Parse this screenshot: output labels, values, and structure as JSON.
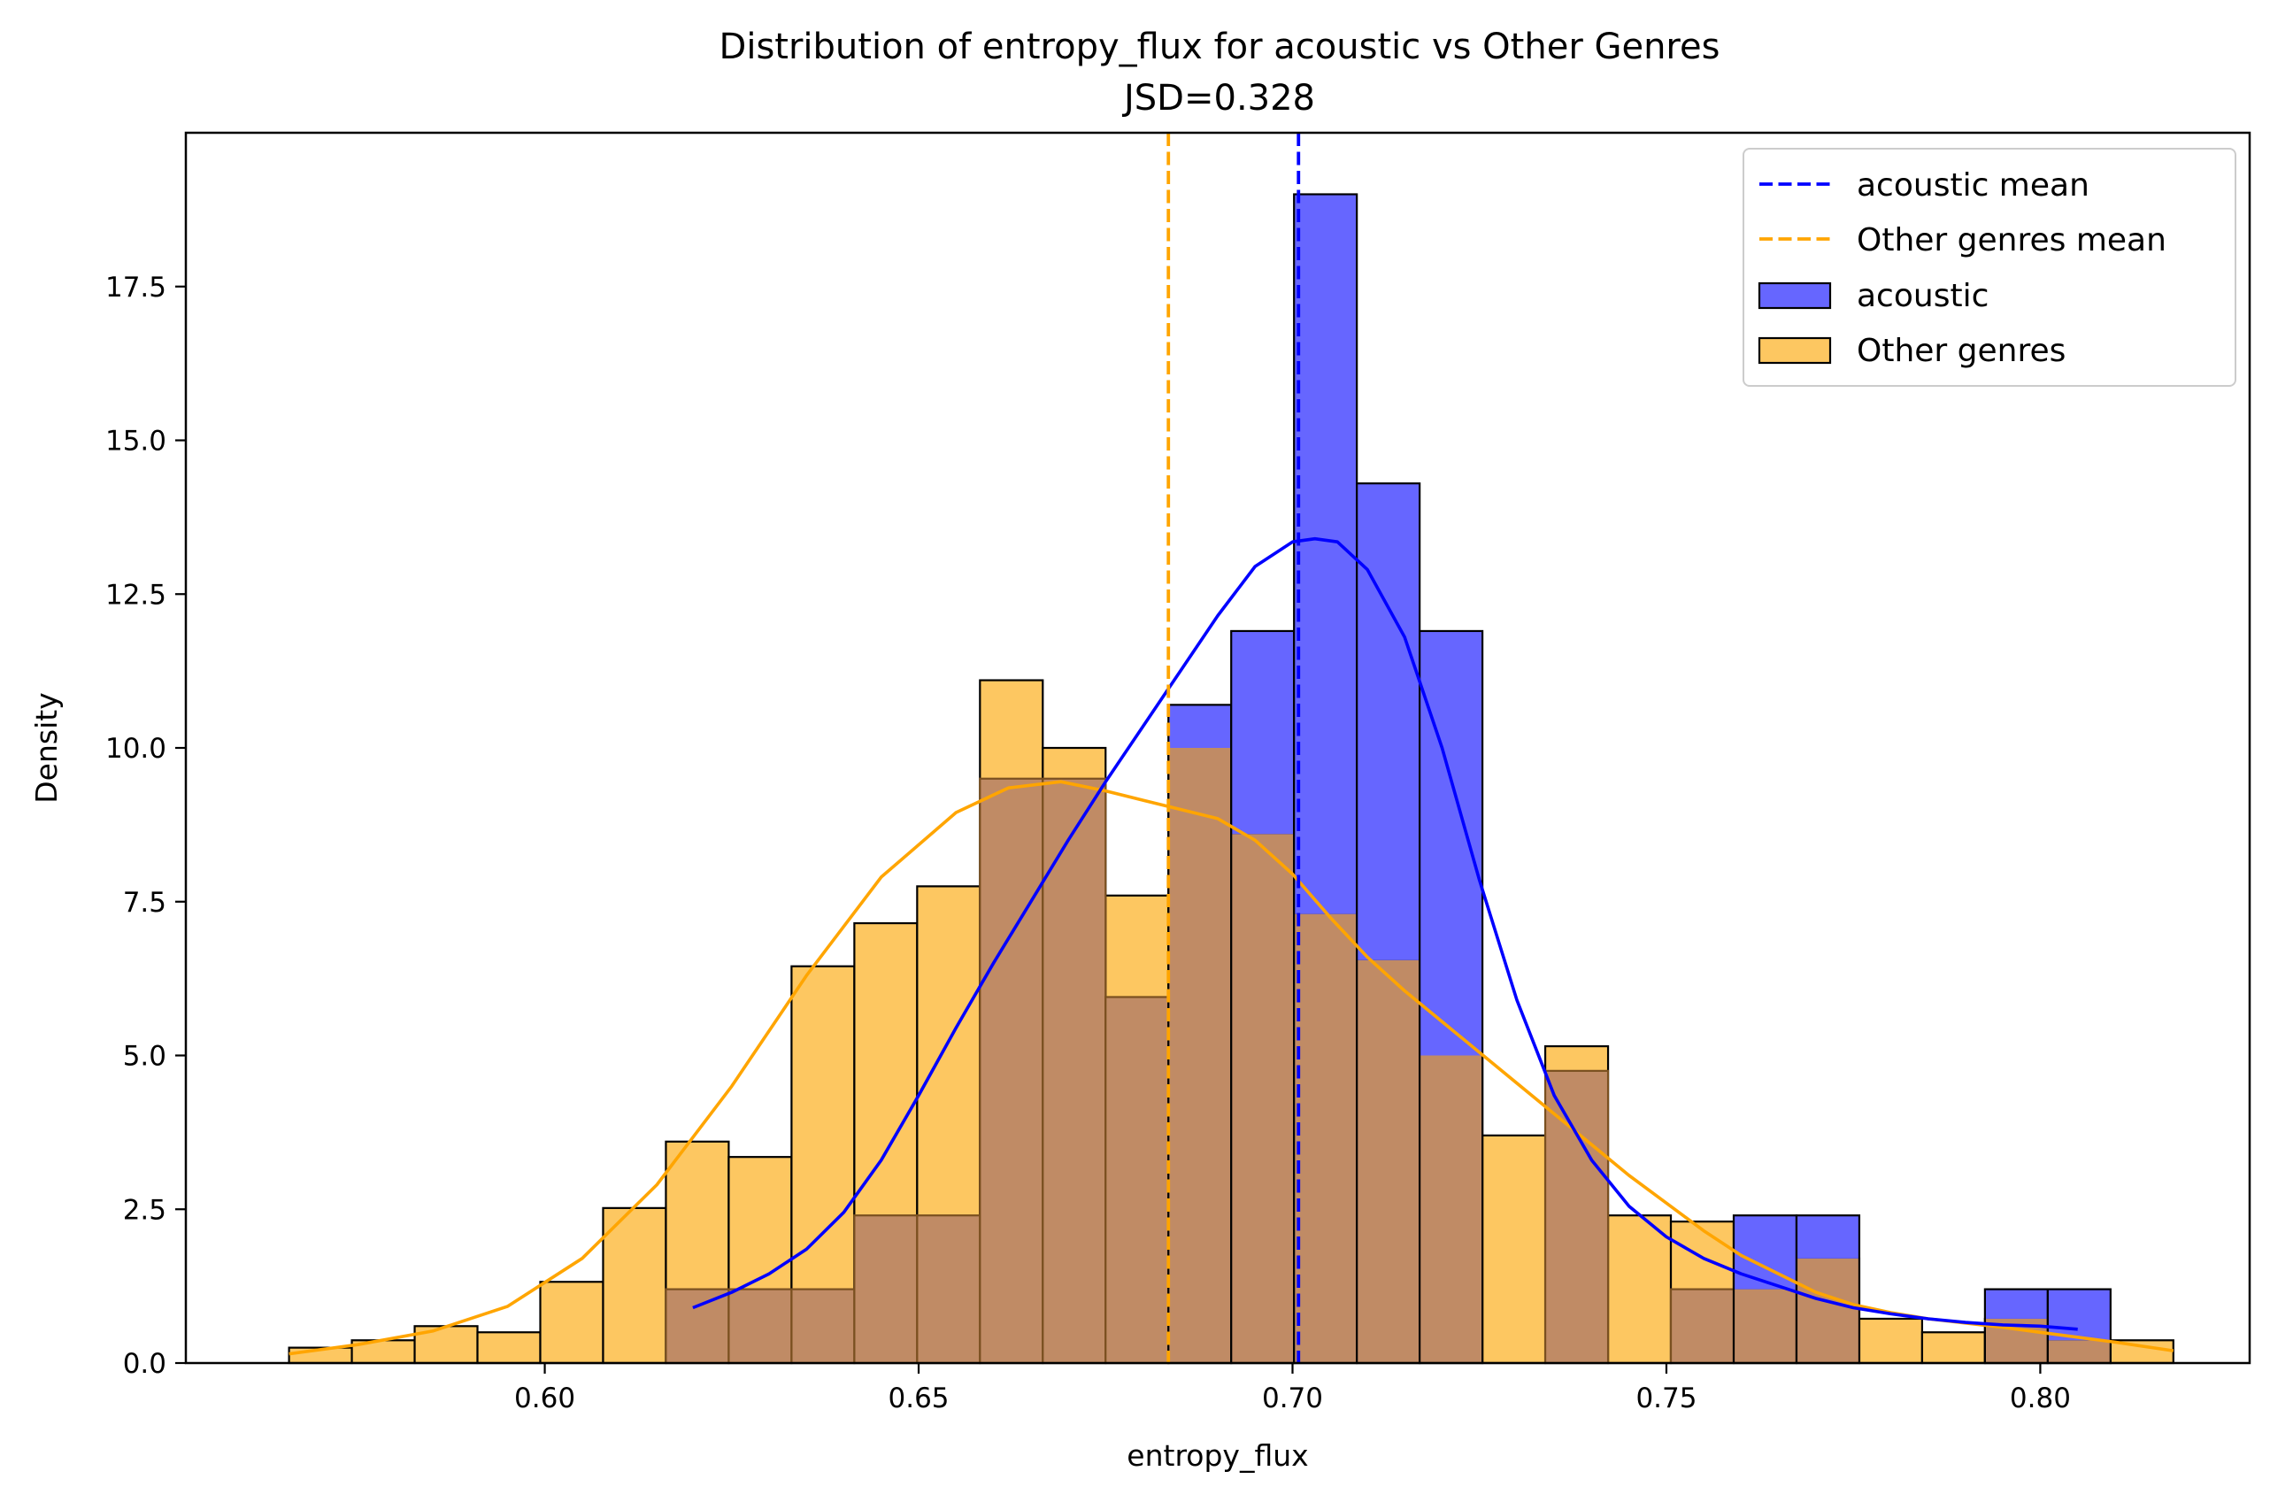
{
  "chart_data": {
    "type": "bar",
    "title": "Distribution of entropy_flux for acoustic vs Other Genres",
    "subtitle": "JSD=0.328",
    "xlabel": "entropy_flux",
    "ylabel": "Density",
    "xlim": [
      0.552,
      0.828
    ],
    "ylim": [
      0,
      20
    ],
    "x_ticks": [
      "0.60",
      "0.65",
      "0.70",
      "0.75",
      "0.80"
    ],
    "x_tick_values": [
      0.6,
      0.65,
      0.7,
      0.75,
      0.8
    ],
    "y_ticks": [
      "0.0",
      "2.5",
      "5.0",
      "7.5",
      "10.0",
      "12.5",
      "15.0",
      "17.5"
    ],
    "y_tick_values": [
      0,
      2.5,
      5,
      7.5,
      10,
      12.5,
      15,
      17.5
    ],
    "grid": false,
    "legend_position": "top-right",
    "colors": {
      "acoustic": "#0000ff",
      "acoustic_fill": "#6666ff",
      "other": "#ffa500",
      "other_fill": "#fdc761",
      "overlap_fill": "#c08b65"
    },
    "legend": [
      {
        "label": "acoustic mean",
        "kind": "dashed-line",
        "color": "#0000ff"
      },
      {
        "label": "Other genres mean",
        "kind": "dashed-line",
        "color": "#ffa500"
      },
      {
        "label": "acoustic",
        "kind": "patch",
        "color": "#6666ff"
      },
      {
        "label": "Other genres",
        "kind": "patch",
        "color": "#fdc761"
      }
    ],
    "bin_edges": [
      0.5658,
      0.5742,
      0.5826,
      0.591,
      0.5994,
      0.6078,
      0.6162,
      0.6246,
      0.633,
      0.6414,
      0.6498,
      0.6582,
      0.6666,
      0.675,
      0.6834,
      0.6918,
      0.7002,
      0.7086,
      0.717,
      0.7254,
      0.7338,
      0.7422,
      0.7506,
      0.759,
      0.7674,
      0.7758,
      0.7842,
      0.7926,
      0.801,
      0.8094,
      0.8178
    ],
    "series": [
      {
        "name": "Other genres",
        "values": [
          0.25,
          0.37,
          0.6,
          0.5,
          1.32,
          2.52,
          3.6,
          3.35,
          6.45,
          7.15,
          7.75,
          11.1,
          10.0,
          7.6,
          10.0,
          8.6,
          7.3,
          6.55,
          5.0,
          3.7,
          5.15,
          2.4,
          2.3,
          1.2,
          1.7,
          0.72,
          0.5,
          0.72,
          0.37,
          0.37
        ]
      },
      {
        "name": "acoustic",
        "values": [
          0,
          0,
          0,
          0,
          0,
          0,
          1.2,
          1.2,
          1.2,
          2.4,
          2.4,
          9.5,
          9.5,
          5.95,
          10.7,
          11.9,
          19.0,
          14.3,
          11.9,
          0,
          4.75,
          0,
          1.2,
          2.4,
          2.4,
          0,
          0,
          1.2,
          1.2,
          0
        ]
      }
    ],
    "kde": [
      {
        "name": "Other genres",
        "x": [
          0.5658,
          0.575,
          0.585,
          0.595,
          0.605,
          0.615,
          0.625,
          0.635,
          0.645,
          0.655,
          0.662,
          0.669,
          0.675,
          0.68,
          0.685,
          0.69,
          0.695,
          0.7,
          0.705,
          0.71,
          0.715,
          0.72,
          0.725,
          0.73,
          0.735,
          0.74,
          0.745,
          0.75,
          0.755,
          0.76,
          0.765,
          0.77,
          0.775,
          0.78,
          0.785,
          0.79,
          0.795,
          0.8,
          0.81,
          0.8178
        ],
        "y": [
          0.15,
          0.3,
          0.52,
          0.92,
          1.7,
          2.9,
          4.5,
          6.3,
          7.9,
          8.95,
          9.35,
          9.45,
          9.3,
          9.15,
          9.0,
          8.85,
          8.5,
          7.95,
          7.25,
          6.6,
          6.05,
          5.55,
          5.05,
          4.55,
          4.05,
          3.55,
          3.05,
          2.6,
          2.15,
          1.75,
          1.45,
          1.15,
          0.95,
          0.82,
          0.72,
          0.65,
          0.58,
          0.5,
          0.34,
          0.2
        ]
      },
      {
        "name": "acoustic",
        "x": [
          0.6198,
          0.625,
          0.63,
          0.635,
          0.64,
          0.645,
          0.65,
          0.655,
          0.66,
          0.665,
          0.67,
          0.675,
          0.68,
          0.685,
          0.69,
          0.695,
          0.7,
          0.703,
          0.706,
          0.71,
          0.715,
          0.72,
          0.725,
          0.73,
          0.735,
          0.74,
          0.745,
          0.75,
          0.755,
          0.76,
          0.765,
          0.77,
          0.775,
          0.78,
          0.785,
          0.79,
          0.795,
          0.8,
          0.805
        ],
        "y": [
          0.9,
          1.15,
          1.45,
          1.85,
          2.45,
          3.3,
          4.35,
          5.45,
          6.5,
          7.5,
          8.5,
          9.45,
          10.35,
          11.25,
          12.15,
          12.95,
          13.35,
          13.4,
          13.35,
          12.9,
          11.8,
          10.0,
          7.85,
          5.9,
          4.35,
          3.3,
          2.55,
          2.05,
          1.7,
          1.45,
          1.25,
          1.05,
          0.9,
          0.8,
          0.72,
          0.66,
          0.62,
          0.6,
          0.55
        ]
      }
    ],
    "means": [
      {
        "name": "acoustic mean",
        "x": 0.7008
      },
      {
        "name": "Other genres mean",
        "x": 0.6834
      }
    ]
  }
}
